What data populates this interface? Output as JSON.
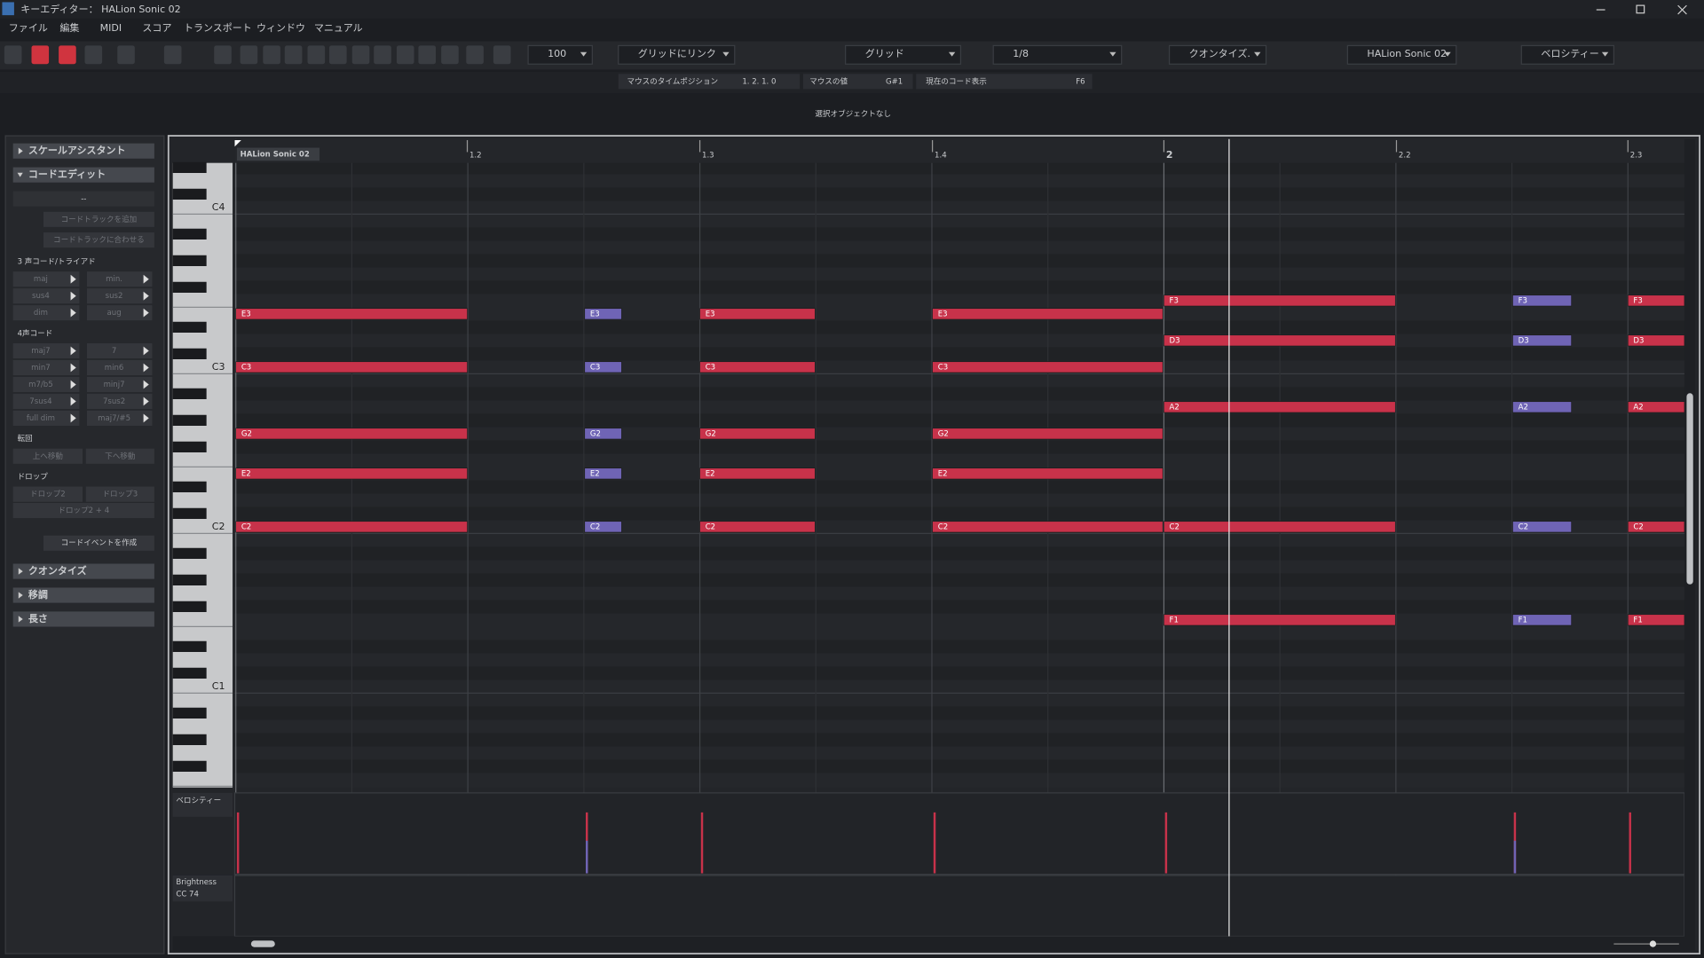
{
  "title_bar": {
    "title": "キーエディター： HALion Sonic 02"
  },
  "menu": [
    "ファイル",
    "編集",
    "MIDI",
    "スコア",
    "トランスポート",
    "ウィンドウ",
    "マニュアル"
  ],
  "toolbar": {
    "velocity": "100",
    "grid_link": "グリッドにリンク",
    "grid_type": "グリッド",
    "quantize": "1/8",
    "quantize_mode": "クオンタイズ.",
    "instrument": "HALion Sonic 02",
    "lane": "ベロシティー"
  },
  "info_line": {
    "mouse_time_label": "マウスのタイムポジション",
    "mouse_time": "1. 2. 1.   0",
    "mouse_value_label": "マウスの値",
    "mouse_value": "G#1",
    "chord_label": "現在のコード表示",
    "chord": "F6"
  },
  "status": "選択オブジェクトなし",
  "inspector": {
    "scale_assistant": "スケールアシスタント",
    "chord_edit": "コードエディット",
    "chord_display": "--",
    "add_chord_track": "コードトラックを追加",
    "match_chord_track": "コードトラックに合わせる",
    "triads_label": "3 声コード/トライアド",
    "triads": [
      "maj",
      "min.",
      "sus4",
      "sus2",
      "dim",
      "aug"
    ],
    "four_label": "4声コード",
    "four": [
      "maj7",
      "7",
      "min7",
      "min6",
      "m7/b5",
      "minj7",
      "7sus4",
      "7sus2",
      "full dim",
      "maj7/#5"
    ],
    "inversion_label": "転回",
    "inversion": [
      "上へ移動",
      "下へ移動"
    ],
    "drop_label": "ドロップ",
    "drop": [
      "ドロップ2",
      "ドロップ3",
      "ドロップ2 + 4"
    ],
    "create": "コードイベントを作成",
    "quantize": "クオンタイズ",
    "transpose": "移調",
    "length": "長さ"
  },
  "ruler": {
    "track": "HALion Sonic 02",
    "marks": [
      "1.2",
      "1.3",
      "1.4",
      "2",
      "2.2",
      "2.3"
    ]
  },
  "keyboard": [
    "C4",
    "C3",
    "C2",
    "C1"
  ],
  "chords": [
    [
      "E3",
      "C3",
      "G2",
      "E2",
      "C2"
    ],
    [
      "E3",
      "C3",
      "G2",
      "E2",
      "C2"
    ],
    [
      "E3",
      "C3",
      "G2",
      "E2",
      "C2"
    ],
    [
      "E3",
      "C3",
      "G2",
      "E2",
      "C2"
    ],
    [
      "F3",
      "D3",
      "A2",
      "C2",
      "F1"
    ],
    [
      "F3",
      "D3",
      "A2",
      "C2",
      "F1"
    ],
    [
      "F3",
      "D3",
      "A2",
      "C2",
      "F1"
    ]
  ],
  "lanes": {
    "velocity": "ベロシティー",
    "controller": "Brightness",
    "cc": "CC 74"
  }
}
